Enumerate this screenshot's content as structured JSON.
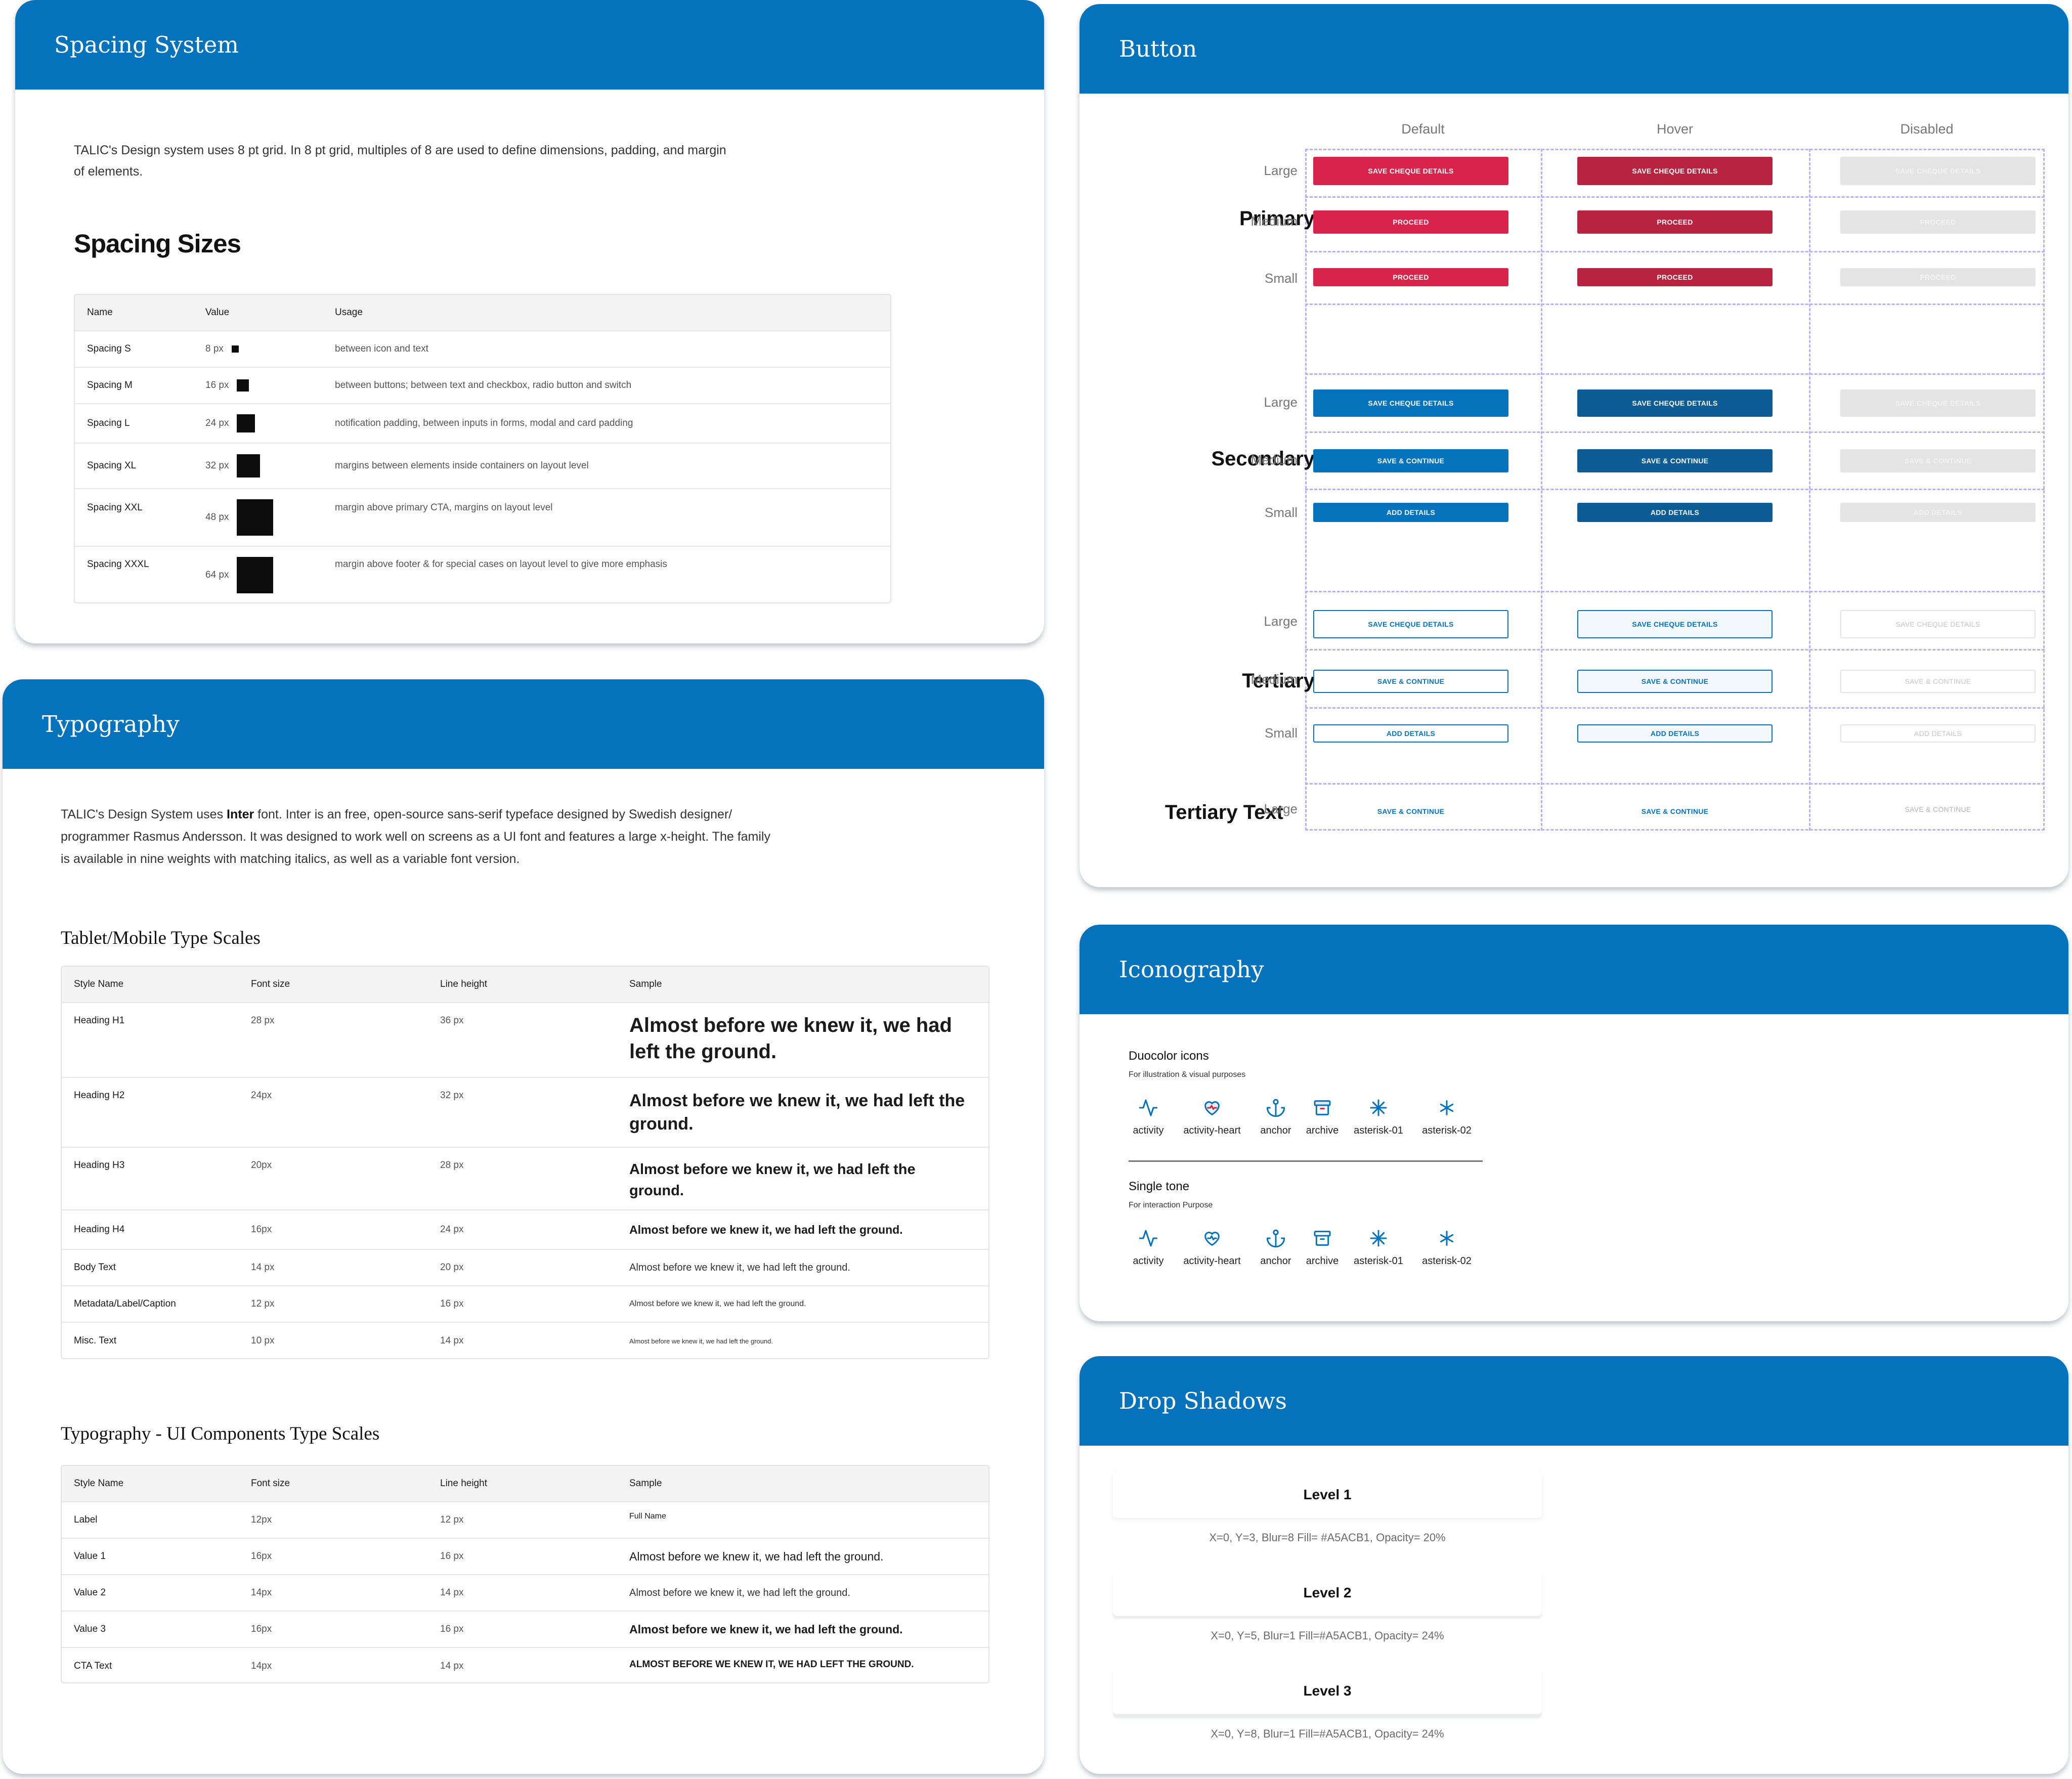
{
  "spacing": {
    "title": "Spacing System",
    "intro": "TALIC's Design system uses 8 pt grid. In 8 pt grid, multiples of 8 are used to define dimensions, padding, and margin of elements.",
    "subtitle": "Spacing Sizes",
    "headers": [
      "Name",
      "Value",
      "Usage"
    ],
    "rows": [
      {
        "name": "Spacing S",
        "value": "8 px",
        "usage": "between icon and text"
      },
      {
        "name": "Spacing M",
        "value": "16 px",
        "usage": "between buttons; between text and checkbox, radio button and switch"
      },
      {
        "name": "Spacing L",
        "value": "24 px",
        "usage": "notification padding, between inputs in forms, modal and card padding"
      },
      {
        "name": "Spacing XL",
        "value": "32 px",
        "usage": "margins between elements inside containers on layout level"
      },
      {
        "name": "Spacing XXL",
        "value": "48 px",
        "usage": "margin above primary CTA, margins on layout level"
      },
      {
        "name": "Spacing XXXL",
        "value": "64 px",
        "usage": "margin above footer &  for special cases on layout level to give more emphasis"
      }
    ]
  },
  "typography": {
    "title": "Typography",
    "intro_pre": "TALIC's Design System uses ",
    "intro_bold": "Inter",
    "intro_post": " font. Inter is an free, open-source sans-serif typeface designed by Swedish designer/ programmer Rasmus Andersson. It was designed to work well on screens as a UI font and features a large x-height. The family is available in nine weights with matching italics, as well as a variable font version.",
    "mobile_title": "Tablet/Mobile Type Scales",
    "headers": [
      "Style Name",
      "Font size",
      "Line height",
      "Sample"
    ],
    "mobile_rows": [
      {
        "name": "Heading H1",
        "size": "28 px",
        "lh": "36 px",
        "sample": "Almost before we knew it, we had left the ground."
      },
      {
        "name": "Heading H2",
        "size": "24px",
        "lh": "32 px",
        "sample": "Almost before we knew it, we had left the ground."
      },
      {
        "name": "Heading H3",
        "size": "20px",
        "lh": "28 px",
        "sample": "Almost before we knew it, we had left the ground."
      },
      {
        "name": "Heading H4",
        "size": "16px",
        "lh": "24 px",
        "sample": "Almost before we knew it, we had left the ground."
      },
      {
        "name": "Body Text",
        "size": "14 px",
        "lh": "20 px",
        "sample": "Almost before we knew it, we had left the ground."
      },
      {
        "name": "Metadata/Label/Caption",
        "size": "12 px",
        "lh": "16 px",
        "sample": "Almost before we knew it, we had left the ground."
      },
      {
        "name": "Misc. Text",
        "size": "10 px",
        "lh": "14 px",
        "sample": "Almost before we knew it, we had left the ground."
      }
    ],
    "ui_title": "Typography - UI Components  Type Scales",
    "ui_rows": [
      {
        "name": "Label",
        "size": "12px",
        "lh": "12 px",
        "sample": "Full Name"
      },
      {
        "name": "Value 1",
        "size": "16px",
        "lh": "16 px",
        "sample": "Almost before we knew it, we had left the ground."
      },
      {
        "name": "Value 2",
        "size": "14px",
        "lh": "14 px",
        "sample": "Almost before we knew it, we had left the ground."
      },
      {
        "name": "Value 3",
        "size": "16px",
        "lh": "16 px",
        "sample": "Almost before we knew it, we had left the ground."
      },
      {
        "name": "CTA Text",
        "size": "14px",
        "lh": "14 px",
        "sample": "ALMOST BEFORE WE KNEW IT, WE HAD LEFT THE GROUND."
      }
    ]
  },
  "button": {
    "title": "Button",
    "columns": [
      "Default",
      "Hover",
      "Disabled"
    ],
    "groups": [
      {
        "label": "Primary",
        "sizes": [
          "Large",
          "Medium",
          "Small"
        ],
        "texts": [
          "SAVE CHEQUE DETAILS",
          "PROCEED",
          "PROCEED"
        ]
      },
      {
        "label": "Secondary",
        "sizes": [
          "Large",
          "Medium",
          "Small"
        ],
        "texts": [
          "SAVE CHEQUE DETAILS",
          "SAVE & CONTINUE",
          "ADD DETAILS"
        ]
      },
      {
        "label": "Tertiary",
        "sizes": [
          "Large",
          "Medium",
          "Small"
        ],
        "texts": [
          "SAVE CHEQUE DETAILS",
          "SAVE & CONTINUE",
          "ADD DETAILS"
        ]
      },
      {
        "label": "Tertiary Text",
        "sizes": [
          "Large"
        ],
        "texts": [
          "SAVE & CONTINUE"
        ]
      }
    ],
    "colors": {
      "primary": "#d8234b",
      "primary_hover": "#b8233f",
      "secondary": "#0573bc",
      "secondary_hover": "#0d5c96",
      "disabled": "#e4e4e4",
      "disabled_text": "#f3f3f3",
      "tertiary_text": "#0573bc",
      "tertiary_disabled_text": "#b5b5b5"
    }
  },
  "iconography": {
    "title": "Iconography",
    "duo_title": "Duocolor icons",
    "duo_sub": "For illustration & visual purposes",
    "single_title": "Single tone",
    "single_sub": "For interaction Purpose",
    "icons": [
      {
        "label": "activity",
        "icon": "activity-icon"
      },
      {
        "label": "activity-heart",
        "icon": "activity-heart-icon"
      },
      {
        "label": "anchor",
        "icon": "anchor-icon"
      },
      {
        "label": "archive",
        "icon": "archive-icon"
      },
      {
        "label": "asterisk-01",
        "icon": "asterisk-01-icon"
      },
      {
        "label": "asterisk-02",
        "icon": "asterisk-02-icon"
      }
    ]
  },
  "shadows": {
    "title": "Drop Shadows",
    "levels": [
      {
        "label": "Level 1",
        "caption": "X=0, Y=3, Blur=8  Fill= #A5ACB1,  Opacity= 20%"
      },
      {
        "label": "Level 2",
        "caption": "X=0, Y=5, Blur=1  Fill=#A5ACB1,  Opacity= 24%"
      },
      {
        "label": "Level 3",
        "caption": "X=0, Y=8, Blur=1  Fill=#A5ACB1,  Opacity= 24%"
      }
    ]
  }
}
